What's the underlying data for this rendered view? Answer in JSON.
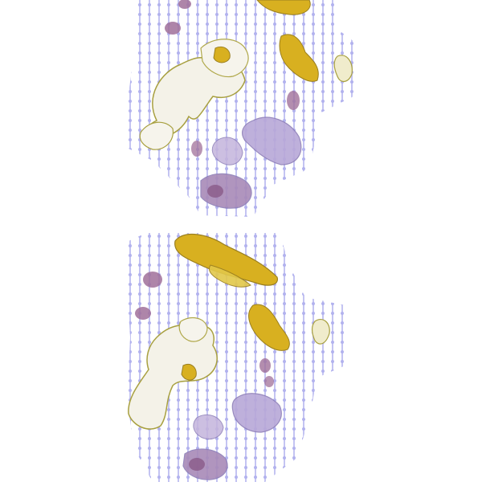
{
  "image": {
    "description_hidden": "",
    "background_color": "#ffffff",
    "grid_color": "#b9b9f0",
    "tissue_colors": {
      "pink": "#a0709a",
      "lavender": "#b8a8d8",
      "yellow": "#d8b020",
      "olive": "#a8a040",
      "pale": "#f4f2e8",
      "outline": "#8e7fb8"
    },
    "sections": [
      {
        "name": "upper-tissue-section"
      },
      {
        "name": "lower-tissue-section"
      }
    ]
  }
}
